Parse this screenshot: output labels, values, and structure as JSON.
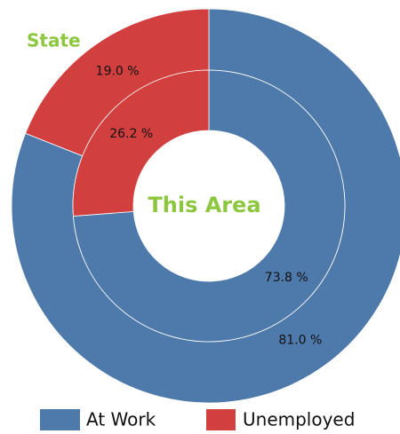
{
  "chart_data": {
    "type": "donut",
    "categories": [
      "At Work",
      "Unemployed"
    ],
    "colors": [
      "#4e7aab",
      "#d13f3f"
    ],
    "rings": [
      {
        "name": "State",
        "values": [
          81.0,
          19.0
        ],
        "value_labels": [
          "81.0 %",
          "19.0 %"
        ]
      },
      {
        "name": "This Area",
        "values": [
          73.8,
          26.2
        ],
        "value_labels": [
          "73.8 %",
          "26.2 %"
        ]
      }
    ]
  }
}
